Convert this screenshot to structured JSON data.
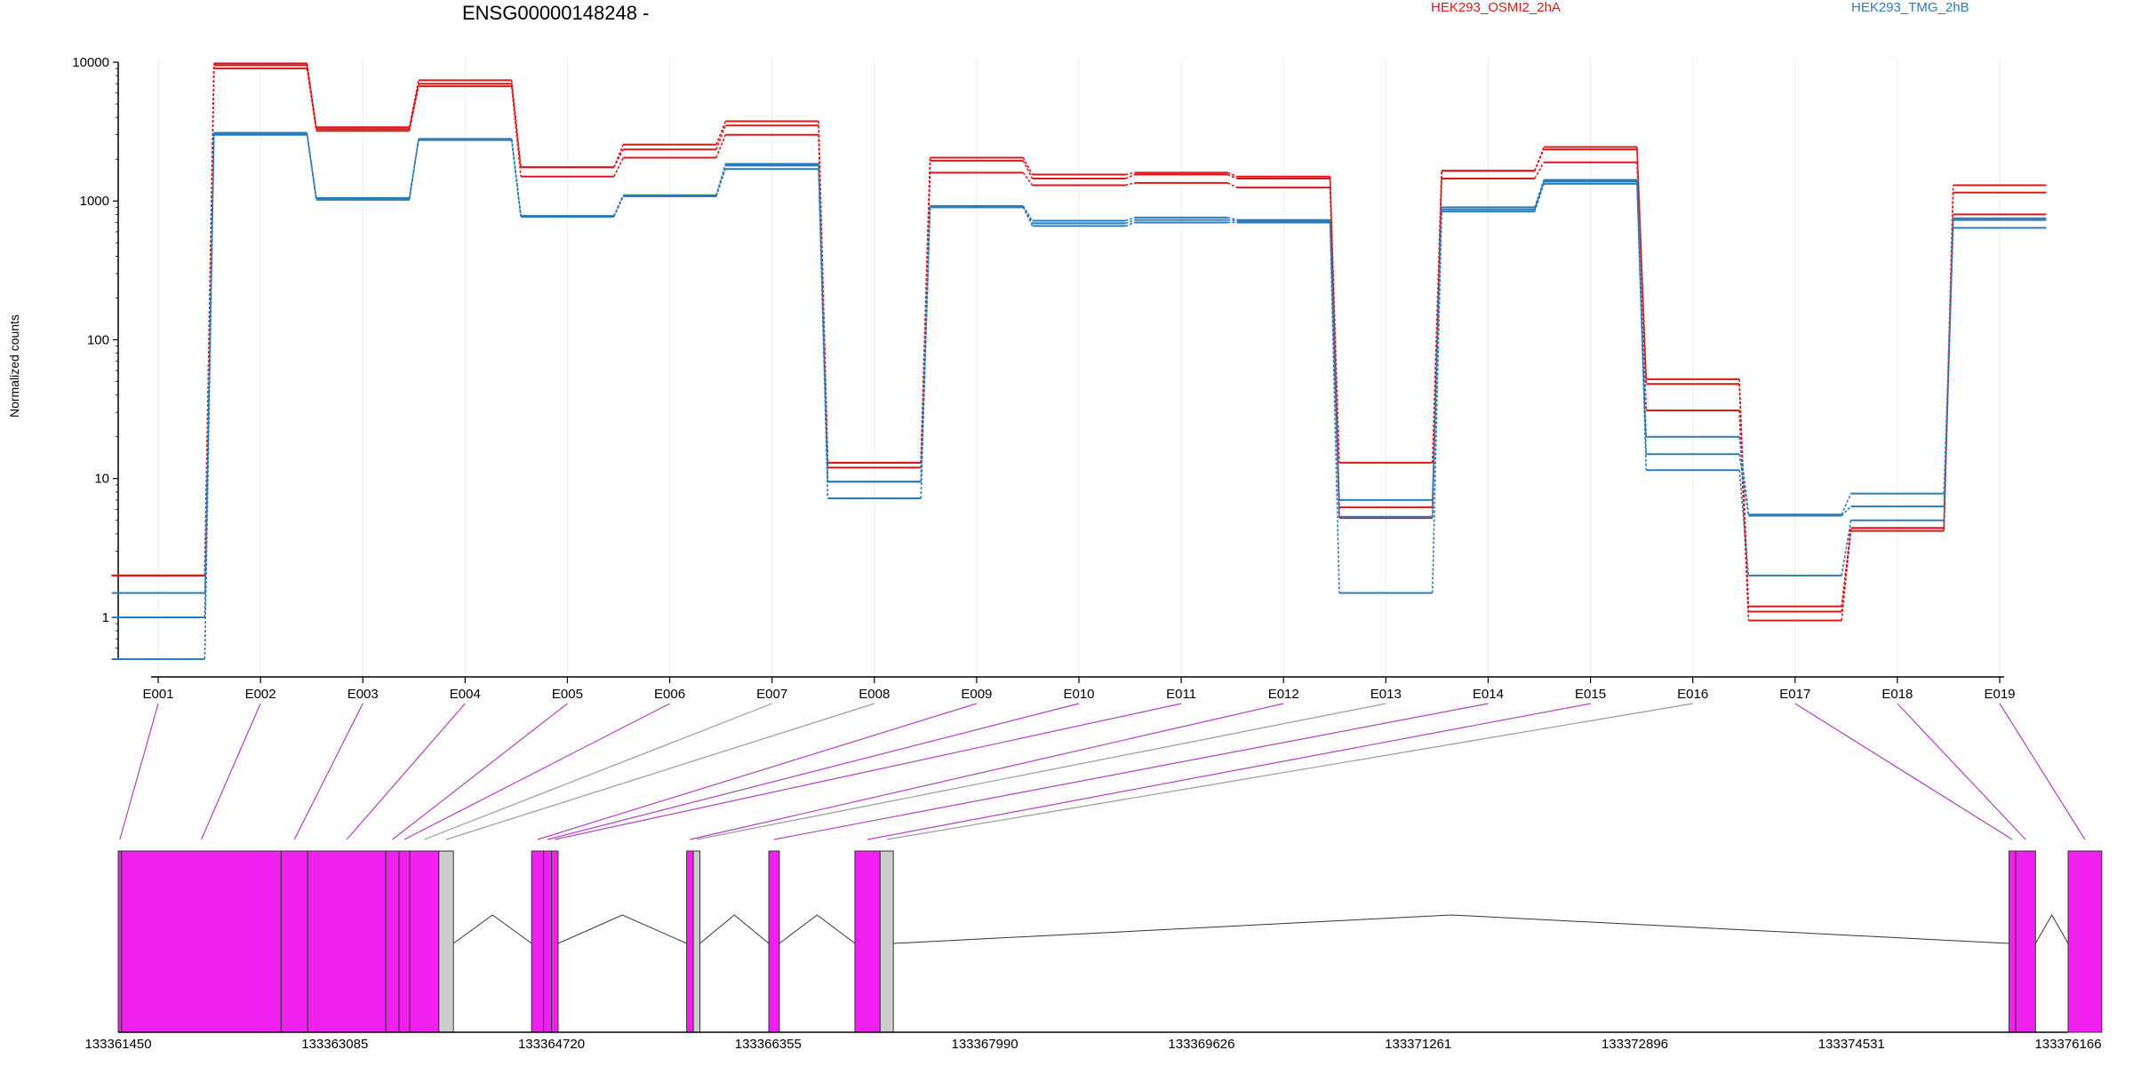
{
  "chart_data": {
    "type": "line",
    "title": "ENSG00000148248 -",
    "ylabel": "Normalized counts",
    "xlabel": "",
    "yscale": "log",
    "ylim": [
      0.5,
      10000
    ],
    "yticks": [
      "1",
      "10",
      "100",
      "1000",
      "10000"
    ],
    "yticks_values": [
      1,
      10,
      100,
      1000,
      10000
    ],
    "grid": "vertical",
    "categories": [
      "E001",
      "E002",
      "E003",
      "E004",
      "E005",
      "E006",
      "E007",
      "E008",
      "E009",
      "E010",
      "E011",
      "E012",
      "E013",
      "E014",
      "E015",
      "E016",
      "E017",
      "E018",
      "E019"
    ],
    "legend": [
      {
        "name": "HEK293_OSMI2_2hA",
        "color": "#d7191c"
      },
      {
        "name": "HEK293_TMG_2hB",
        "color": "#2c7bb6"
      }
    ],
    "series": [
      {
        "name": "HEK293_OSMI2_2hA",
        "color": "#d7191c",
        "values": [
          2.0,
          9800,
          3400,
          7400,
          1750,
          2550,
          3750,
          13,
          2050,
          1550,
          1600,
          1500,
          13,
          1650,
          2450,
          52,
          1.2,
          4.4,
          1300
        ]
      },
      {
        "name": "HEK293_OSMI2_2hA",
        "color": "#d7191c",
        "values": [
          2.0,
          9500,
          3300,
          7000,
          1750,
          2350,
          3500,
          13,
          1950,
          1450,
          1550,
          1450,
          6.2,
          1650,
          2350,
          48,
          1.1,
          4.4,
          1150
        ]
      },
      {
        "name": "HEK293_OSMI2_2hA",
        "color": "#d7191c",
        "values": [
          2.0,
          9000,
          3200,
          6700,
          1500,
          2050,
          3000,
          12,
          1600,
          1300,
          1350,
          1250,
          5.2,
          1450,
          1900,
          31,
          0.95,
          4.2,
          800
        ]
      },
      {
        "name": "HEK293_TMG_2hB",
        "color": "#2c7bb6",
        "values": [
          1.5,
          3100,
          1050,
          2800,
          780,
          1100,
          1850,
          9.5,
          920,
          720,
          760,
          730,
          7.0,
          900,
          1420,
          20,
          5.5,
          7.8,
          750
        ]
      },
      {
        "name": "HEK293_TMG_2hB",
        "color": "#2c7bb6",
        "values": [
          1.0,
          3050,
          1040,
          2780,
          780,
          1090,
          1800,
          9.5,
          910,
          690,
          730,
          720,
          5.3,
          870,
          1380,
          15,
          5.4,
          6.3,
          730
        ]
      },
      {
        "name": "HEK293_TMG_2hB",
        "color": "#2c7bb6",
        "values": [
          0.5,
          3000,
          1020,
          2750,
          770,
          1080,
          1700,
          7.2,
          900,
          660,
          700,
          700,
          1.5,
          840,
          1330,
          11.5,
          2.0,
          5.0,
          640
        ]
      }
    ],
    "gene_model": {
      "coordinate_ticks": [
        "133361450",
        "133363085",
        "133364720",
        "133366355",
        "133367990",
        "133369626",
        "133371261",
        "133372896",
        "133374531",
        "133376166"
      ],
      "coordinate_ticks_values": [
        133361450,
        133363085,
        133364720,
        133366355,
        133367990,
        133369626,
        133371261,
        133372896,
        133374531,
        133376166
      ],
      "exon_color": "#f020f0",
      "noncounted_exon_color": "#cccccc",
      "connector_color": "#b040c0",
      "exon_ranges": [
        [
          133361450,
          133361475
        ],
        [
          133361475,
          133362680
        ],
        [
          133362680,
          133362880
        ],
        [
          133362880,
          133363470
        ],
        [
          133363470,
          133363570
        ],
        [
          133363570,
          133363650
        ],
        [
          133363650,
          133363870
        ],
        [
          133363870,
          133363980
        ],
        [
          133364570,
          133364660
        ],
        [
          133364660,
          133364720
        ],
        [
          133364720,
          133364770
        ],
        [
          133365740,
          133365790
        ],
        [
          133365790,
          133365840
        ],
        [
          133366360,
          133366440
        ],
        [
          133367010,
          133367200
        ],
        [
          133367200,
          133367300
        ],
        [
          133375720,
          133375770
        ],
        [
          133375770,
          133375920
        ],
        [
          133376166,
          133376420
        ]
      ],
      "exon_kinds": [
        "counted",
        "counted",
        "counted",
        "counted",
        "counted",
        "counted",
        "counted",
        "noncounted",
        "counted",
        "counted",
        "counted",
        "counted",
        "noncounted",
        "counted",
        "counted",
        "noncounted",
        "counted",
        "counted",
        "counted"
      ],
      "connector_kinds": [
        "counted",
        "counted",
        "counted",
        "counted",
        "counted",
        "counted",
        "noncounted",
        "noncounted",
        "counted",
        "counted",
        "counted",
        "counted",
        "noncounted",
        "counted",
        "counted",
        "noncounted",
        "counted",
        "counted",
        "counted"
      ]
    }
  }
}
